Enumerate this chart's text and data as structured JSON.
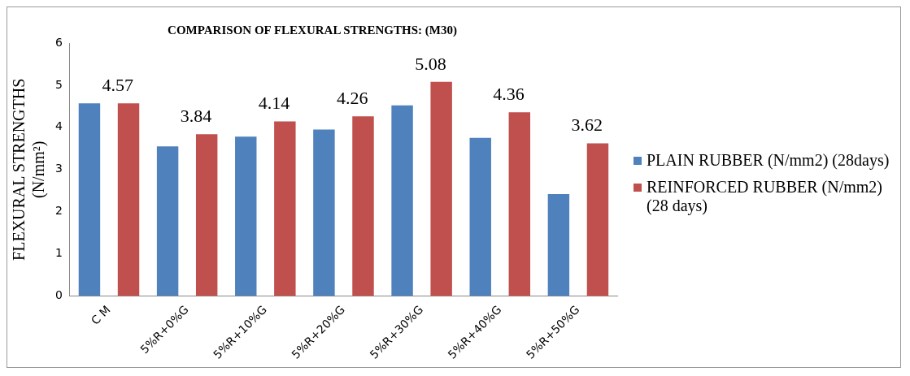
{
  "chart_data": {
    "type": "bar",
    "title": "COMPARISON OF FLEXURAL STRENGTHS: (M30)",
    "ylabel": "FLEXURAL STRENGTHS (N/mm²)",
    "categories": [
      "C M",
      "5%R+0%G",
      "5%R+10%G",
      "5%R+20%G",
      "5%R+30%G",
      "5%R+40%G",
      "5%R+50%G"
    ],
    "series": [
      {
        "name": "PLAIN RUBBER (N/mm2) (28days)",
        "color": "#4f81bd",
        "values": [
          4.57,
          3.55,
          3.78,
          3.95,
          4.52,
          3.75,
          2.42
        ]
      },
      {
        "name": "REINFORCED RUBBER (N/mm2) (28 days)",
        "color": "#c0504d",
        "values": [
          4.57,
          3.84,
          4.14,
          4.26,
          5.08,
          4.36,
          3.62
        ],
        "value_labels": [
          "4.57",
          "3.84",
          "4.14",
          "4.26",
          "5.08",
          "4.36",
          "3.62"
        ]
      }
    ],
    "ylim": [
      0,
      6
    ],
    "yticks": [
      0,
      1,
      2,
      3,
      4,
      5,
      6
    ],
    "grid": false,
    "legend": "right"
  }
}
